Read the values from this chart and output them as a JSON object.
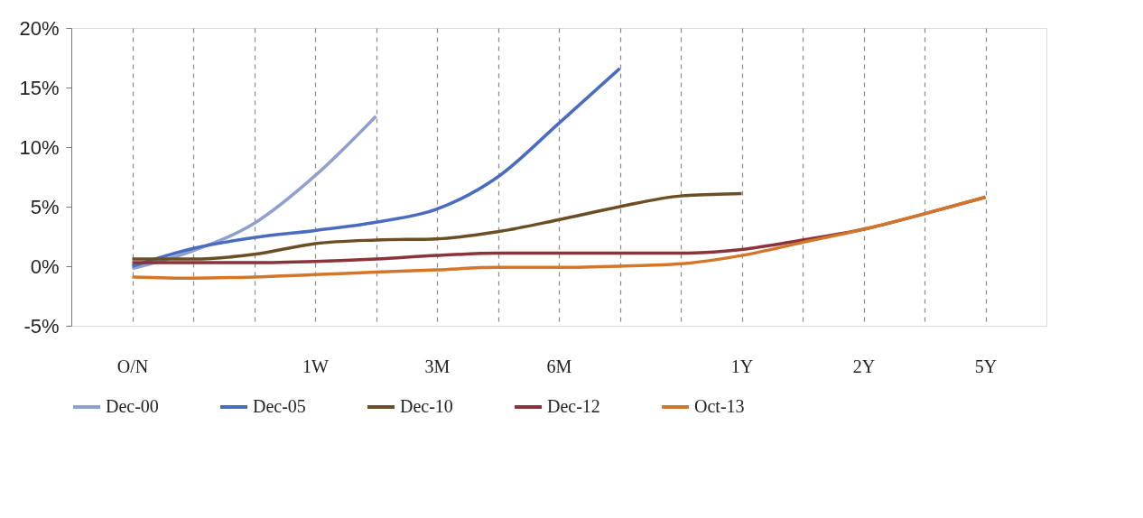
{
  "chart_data": {
    "type": "line",
    "categories": [
      "O/N",
      null,
      null,
      "1W",
      null,
      "3M",
      null,
      "6M",
      null,
      null,
      "1Y",
      null,
      "2Y",
      null,
      "5Y"
    ],
    "series": [
      {
        "name": "Dec-00",
        "color": "#8fa0cc",
        "values": [
          -0.2,
          1.3,
          3.6,
          7.6,
          12.6,
          null,
          null,
          null,
          null,
          null,
          null,
          null,
          null,
          null,
          null
        ]
      },
      {
        "name": "Dec-05",
        "color": "#4a6cc0",
        "values": [
          0.0,
          1.5,
          2.4,
          3.0,
          3.7,
          4.8,
          7.5,
          12.0,
          16.6,
          null,
          null,
          null,
          null,
          null,
          null
        ]
      },
      {
        "name": "Dec-10",
        "color": "#6b4e23",
        "values": [
          0.6,
          0.6,
          1.0,
          1.9,
          2.2,
          2.3,
          2.9,
          3.9,
          5.0,
          5.9,
          6.1,
          null,
          null,
          null,
          null
        ]
      },
      {
        "name": "Dec-12",
        "color": "#8b3338",
        "values": [
          0.3,
          0.3,
          0.3,
          0.4,
          0.6,
          0.9,
          1.1,
          1.1,
          1.1,
          1.1,
          1.4,
          2.2,
          3.1,
          4.4,
          5.8
        ]
      },
      {
        "name": "Oct-13",
        "color": "#d4762a",
        "values": [
          -0.9,
          -1.0,
          -0.9,
          -0.7,
          -0.5,
          -0.3,
          -0.1,
          -0.1,
          0.0,
          0.2,
          0.9,
          2.0,
          3.1,
          4.4,
          5.8
        ]
      }
    ],
    "ylim": [
      -5,
      20
    ],
    "yticks": [
      {
        "value": -5,
        "label": "-5%"
      },
      {
        "value": 0,
        "label": "0%"
      },
      {
        "value": 5,
        "label": "5%"
      },
      {
        "value": 10,
        "label": "10%"
      },
      {
        "value": 15,
        "label": "15%"
      },
      {
        "value": 20,
        "label": "20%"
      }
    ],
    "grid": "x",
    "legend": "bottom",
    "marker": "none",
    "line_style": "solid"
  }
}
